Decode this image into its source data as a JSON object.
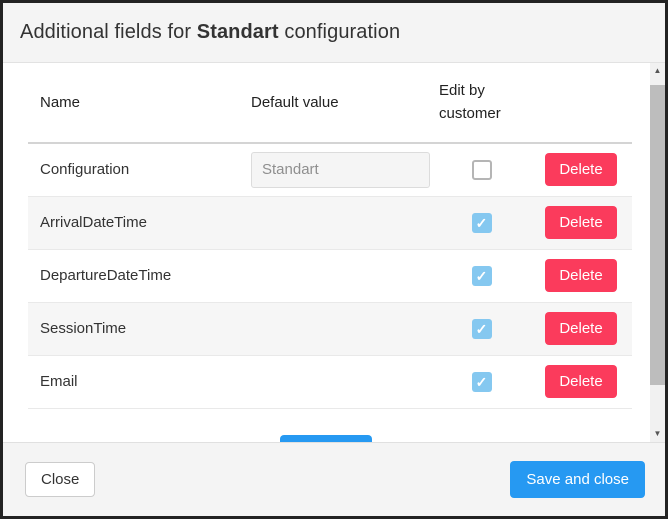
{
  "modal": {
    "title_prefix": "Additional fields for ",
    "title_bold": "Standart",
    "title_suffix": " configuration"
  },
  "table": {
    "headers": {
      "name": "Name",
      "default_value": "Default value",
      "edit_by_customer": "Edit by customer"
    },
    "delete_label": "Delete",
    "rows": [
      {
        "name": "Configuration",
        "default_value": "Standart",
        "edit_by_customer": false
      },
      {
        "name": "ArrivalDateTime",
        "default_value": "",
        "edit_by_customer": true
      },
      {
        "name": "DepartureDateTime",
        "default_value": "",
        "edit_by_customer": true
      },
      {
        "name": "SessionTime",
        "default_value": "",
        "edit_by_customer": true
      },
      {
        "name": "Email",
        "default_value": "",
        "edit_by_customer": true
      }
    ]
  },
  "footer": {
    "close_label": "Close",
    "save_label": "Save and close"
  },
  "icons": {
    "checkmark": "✓",
    "scroll_up": "▲",
    "scroll_down": "▼"
  },
  "colors": {
    "primary_blue": "#2699f2",
    "danger_pink": "#fb3b5c",
    "checkbox_blue": "#85c8f0"
  }
}
